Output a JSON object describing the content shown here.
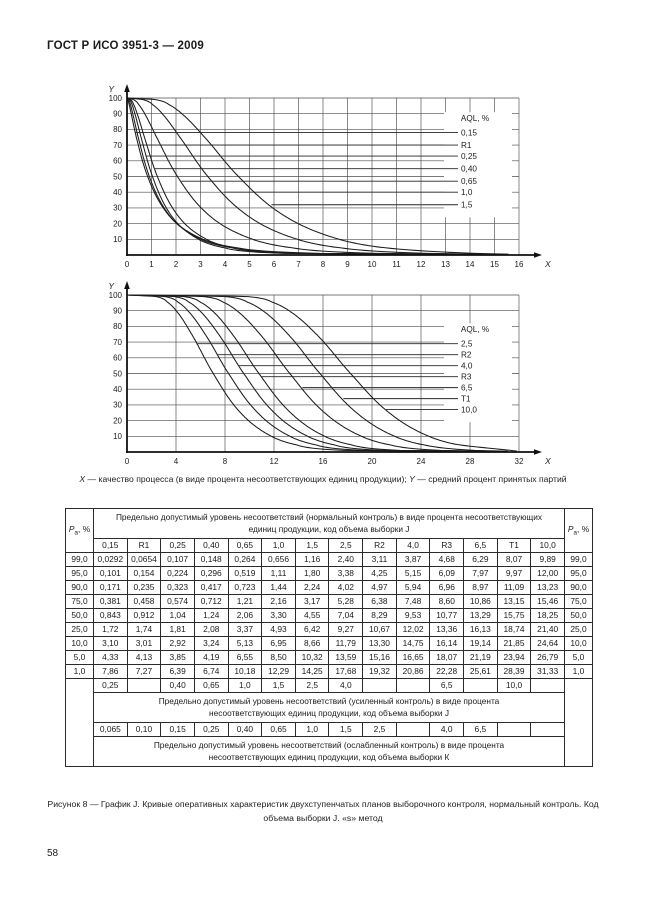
{
  "page": {
    "header": "ГОСТ Р ИСО 3951-3 — 2009",
    "number": "58"
  },
  "axis_note": {
    "x_symbol": "X",
    "x_text": " — качество процесса (в виде процента несоответствующих единиц продукции); ",
    "y_symbol": "Y",
    "y_text": " — средний процент принятых партий"
  },
  "figure_caption": "Рисунок 8 — График J. Кривые оперативных характеристик двухступенчатых планов выборочного контроля, нормальный контроль. Код объема выборки J. «s» метод",
  "chart_data": [
    {
      "type": "line",
      "title": "Кривые оперативных характеристик, код объема выборки J (AQL 0,15–1,5)",
      "xlabel": "X",
      "ylabel": "Y",
      "xlim": [
        0,
        16
      ],
      "ylim": [
        0,
        100
      ],
      "xticks": [
        0,
        1,
        2,
        3,
        4,
        5,
        6,
        7,
        8,
        9,
        10,
        11,
        12,
        13,
        14,
        15,
        16
      ],
      "yticks": [
        0,
        10,
        20,
        30,
        40,
        50,
        60,
        70,
        80,
        90,
        100
      ],
      "grid": true,
      "legend_title": "AQL, %",
      "legend_position": "inside-right",
      "pa_levels": [
        99,
        95,
        90,
        75,
        50,
        25,
        10,
        5,
        1
      ],
      "series": [
        {
          "name": "0,15",
          "x": [
            0.0292,
            0.101,
            0.171,
            0.381,
            0.843,
            1.72,
            3.1,
            4.33,
            7.86
          ]
        },
        {
          "name": "R1",
          "x": [
            0.0654,
            0.154,
            0.235,
            0.458,
            0.912,
            1.74,
            3.01,
            4.13,
            7.27
          ]
        },
        {
          "name": "0,25",
          "x": [
            0.107,
            0.224,
            0.323,
            0.574,
            1.04,
            1.81,
            2.92,
            3.85,
            6.39
          ]
        },
        {
          "name": "0,40",
          "x": [
            0.148,
            0.296,
            0.417,
            0.712,
            1.24,
            2.08,
            3.24,
            4.19,
            6.74
          ]
        },
        {
          "name": "0,65",
          "x": [
            0.264,
            0.519,
            0.723,
            1.21,
            2.06,
            3.37,
            5.13,
            6.55,
            10.18
          ]
        },
        {
          "name": "1,0",
          "x": [
            0.656,
            1.11,
            1.44,
            2.16,
            3.3,
            4.93,
            6.95,
            8.5,
            12.29
          ]
        },
        {
          "name": "1,5",
          "x": [
            1.16,
            1.8,
            2.24,
            3.17,
            4.55,
            6.42,
            8.66,
            10.32,
            14.25
          ]
        }
      ]
    },
    {
      "type": "line",
      "title": "Кривые оперативных характеристик, код объема выборки J (AQL 2,5–10,0)",
      "xlabel": "X",
      "ylabel": "Y",
      "xlim": [
        0,
        32
      ],
      "ylim": [
        0,
        100
      ],
      "xticks": [
        0,
        4,
        8,
        12,
        16,
        20,
        24,
        28,
        32
      ],
      "yticks": [
        0,
        10,
        20,
        30,
        40,
        50,
        60,
        70,
        80,
        90,
        100
      ],
      "grid": true,
      "legend_title": "AQL, %",
      "legend_position": "inside-right",
      "pa_levels": [
        99,
        95,
        90,
        75,
        50,
        25,
        10,
        5,
        1
      ],
      "series": [
        {
          "name": "2,5",
          "x": [
            2.4,
            3.38,
            4.02,
            5.28,
            7.04,
            9.27,
            11.79,
            13.59,
            17.68
          ]
        },
        {
          "name": "R2",
          "x": [
            3.11,
            4.25,
            4.97,
            6.38,
            8.29,
            10.67,
            13.3,
            15.16,
            19.32
          ]
        },
        {
          "name": "4,0",
          "x": [
            3.87,
            5.15,
            5.94,
            7.48,
            9.53,
            12.02,
            14.75,
            16.65,
            20.86
          ]
        },
        {
          "name": "R3",
          "x": [
            4.68,
            6.09,
            6.96,
            8.6,
            10.77,
            13.36,
            16.14,
            18.07,
            22.28
          ]
        },
        {
          "name": "6,5",
          "x": [
            6.29,
            7.97,
            8.97,
            10.86,
            13.29,
            16.13,
            19.14,
            21.19,
            25.61
          ]
        },
        {
          "name": "T1",
          "x": [
            8.07,
            9.97,
            11.09,
            13.15,
            15.75,
            18.74,
            21.85,
            23.94,
            28.39
          ]
        },
        {
          "name": "10,0",
          "x": [
            9.89,
            12.0,
            13.23,
            15.46,
            18.25,
            21.4,
            24.64,
            26.79,
            31.33
          ]
        }
      ]
    }
  ],
  "table": {
    "pa_symbol": "P",
    "pa_sub": "a",
    "pa_suffix": ", %",
    "normal_header": "Предельно допустимый уровень несоответствий (нормальный контроль) в виде процента несоответствующих единиц продукции, код объема выборки J",
    "col_headers": [
      "0,15",
      "R1",
      "0,25",
      "0,40",
      "0,65",
      "1,0",
      "1,5",
      "2,5",
      "R2",
      "4,0",
      "R3",
      "6,5",
      "T1",
      "10,0"
    ],
    "rows": [
      {
        "pa": "99,0",
        "values": [
          "0,0292",
          "0,0654",
          "0,107",
          "0,148",
          "0,264",
          "0,656",
          "1,16",
          "2,40",
          "3,11",
          "3,87",
          "4,68",
          "6,29",
          "8,07",
          "9,89"
        ]
      },
      {
        "pa": "95,0",
        "values": [
          "0,101",
          "0,154",
          "0,224",
          "0,296",
          "0,519",
          "1,11",
          "1,80",
          "3,38",
          "4,25",
          "5,15",
          "6,09",
          "7,97",
          "9,97",
          "12,00"
        ]
      },
      {
        "pa": "90,0",
        "values": [
          "0,171",
          "0,235",
          "0,323",
          "0,417",
          "0,723",
          "1,44",
          "2,24",
          "4,02",
          "4,97",
          "5,94",
          "6,96",
          "8,97",
          "11,09",
          "13,23"
        ]
      },
      {
        "pa": "75,0",
        "values": [
          "0,381",
          "0,458",
          "0,574",
          "0,712",
          "1,21",
          "2,16",
          "3,17",
          "5,28",
          "6,38",
          "7,48",
          "8,60",
          "10,86",
          "13,15",
          "15,46"
        ]
      },
      {
        "pa": "50,0",
        "values": [
          "0,843",
          "0,912",
          "1,04",
          "1,24",
          "2,06",
          "3,30",
          "4,55",
          "7,04",
          "8,29",
          "9,53",
          "10,77",
          "13,29",
          "15,75",
          "18,25"
        ]
      },
      {
        "pa": "25,0",
        "values": [
          "1,72",
          "1,74",
          "1,81",
          "2,08",
          "3,37",
          "4,93",
          "6,42",
          "9,27",
          "10,67",
          "12,02",
          "13,36",
          "16,13",
          "18,74",
          "21,40"
        ]
      },
      {
        "pa": "10,0",
        "values": [
          "3,10",
          "3,01",
          "2,92",
          "3,24",
          "5,13",
          "6,95",
          "8,66",
          "11,79",
          "13,30",
          "14,75",
          "16,14",
          "19,14",
          "21,85",
          "24,64"
        ]
      },
      {
        "pa": "5,0",
        "values": [
          "4,33",
          "4,13",
          "3,85",
          "4,19",
          "6,55",
          "8,50",
          "10,32",
          "13,59",
          "15,16",
          "16,65",
          "18,07",
          "21,19",
          "23,94",
          "26,79"
        ]
      },
      {
        "pa": "1,0",
        "values": [
          "7,86",
          "7,27",
          "6,39",
          "6,74",
          "10,18",
          "12,29",
          "14,25",
          "17,68",
          "19,32",
          "20,86",
          "22,28",
          "25,61",
          "28,39",
          "31,33"
        ]
      }
    ],
    "extra_sections": [
      {
        "values": [
          "0,25",
          "",
          "0,40",
          "0,65",
          "1,0",
          "1,5",
          "2,5",
          "4,0",
          "",
          "",
          "6,5",
          "",
          "10,0",
          ""
        ],
        "label": "Предельно допустимый уровень несоответствий (усиленный контроль) в виде процента несоответствующих единиц продукции, код объема выборки J"
      },
      {
        "values": [
          "0,065",
          "0,10",
          "0,15",
          "0,25",
          "0,40",
          "0,65",
          "1,0",
          "1,5",
          "2,5",
          "",
          "4,0",
          "6,5",
          "",
          ""
        ],
        "label": "Предельно допустимый уровень несоответствий (ослабленный контроль) в виде процента несоответствующих единиц продукции, код объема выборки К"
      }
    ]
  }
}
